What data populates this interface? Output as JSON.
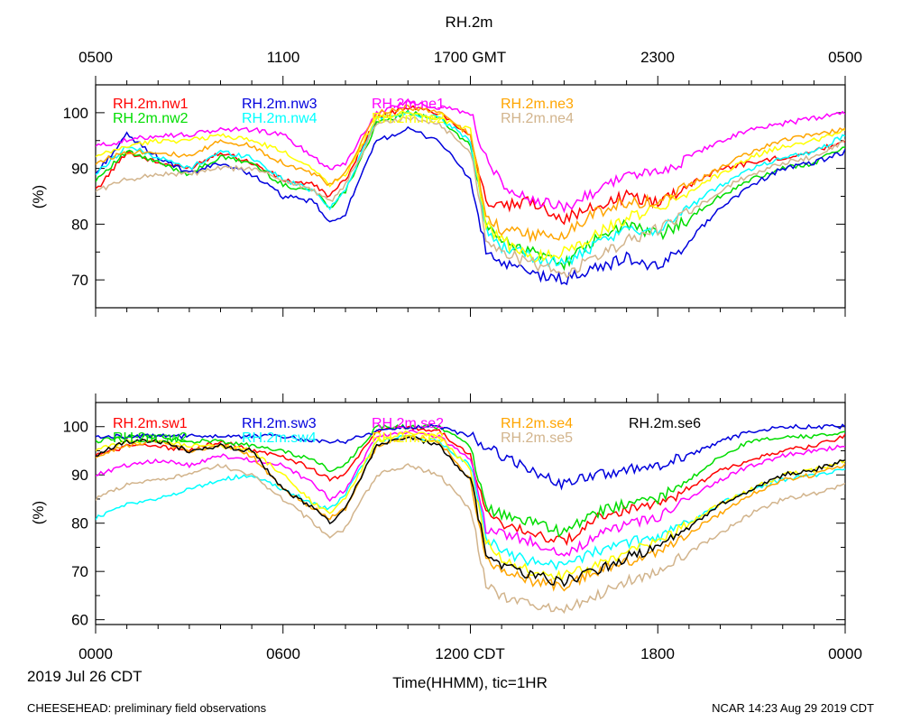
{
  "title": "RH.2m",
  "top_axis": {
    "ticks": [
      "0500",
      "1100",
      "1700 GMT",
      "2300",
      "0500"
    ]
  },
  "bottom_axis": {
    "ticks": [
      "0000",
      "0600",
      "1200 CDT",
      "1800",
      "0000"
    ],
    "xlabel": "Time(HHMM), tic=1HR"
  },
  "date_label": "2019 Jul 26 CDT",
  "footer_left": "CHEESEHEAD: preliminary field observations",
  "footer_right": "NCAR 14:23 Aug 29 2019 CDT",
  "chart_data": [
    {
      "type": "line",
      "title": "RH.2m",
      "ylabel": "(%)",
      "ylim": [
        65,
        105
      ],
      "yticks": [
        "70",
        "80",
        "90",
        "100"
      ],
      "xlim_hours": [
        0,
        24
      ],
      "x_hours": [
        0,
        1,
        2,
        3,
        4,
        5,
        6,
        7,
        7.5,
        8,
        9,
        10,
        11,
        12,
        12.5,
        13,
        14,
        15,
        16,
        17,
        18,
        19,
        20,
        21,
        22,
        23,
        24
      ],
      "series": [
        {
          "name": "RH.2m.nw1",
          "color": "#ff0000",
          "values": [
            86,
            93,
            91,
            90,
            93,
            91,
            88,
            87,
            85,
            88,
            99,
            101,
            100,
            96,
            84,
            83,
            84,
            81,
            83,
            85,
            84,
            87,
            90,
            91,
            92,
            93,
            95
          ]
        },
        {
          "name": "RH.2m.nw2",
          "color": "#00dd00",
          "values": [
            88,
            93,
            91,
            89,
            92,
            91,
            87,
            86,
            83,
            86,
            98,
            100,
            99,
            94,
            80,
            77,
            75,
            73,
            77,
            80,
            78,
            81,
            85,
            88,
            90,
            91,
            94
          ]
        },
        {
          "name": "RH.2m.nw3",
          "color": "#0000dd",
          "values": [
            89,
            96,
            92,
            89,
            91,
            89,
            85,
            84,
            80,
            82,
            95,
            97,
            95,
            88,
            75,
            73,
            71,
            70,
            72,
            74,
            72,
            77,
            83,
            87,
            90,
            91,
            93
          ]
        },
        {
          "name": "RH.2m.nw4",
          "color": "#00ffff",
          "values": [
            89,
            94,
            92,
            90,
            93,
            92,
            88,
            86,
            83,
            86,
            99,
            100,
            99,
            95,
            79,
            76,
            74,
            73,
            76,
            79,
            79,
            83,
            87,
            90,
            92,
            93,
            96
          ]
        },
        {
          "name": "RH.2m.ne1",
          "color": "#ff00ff",
          "values": [
            94,
            95,
            96,
            96,
            97,
            97,
            96,
            92,
            90,
            91,
            100,
            102,
            101,
            100,
            92,
            87,
            84,
            83,
            86,
            89,
            89,
            92,
            95,
            97,
            98,
            99,
            100
          ]
        },
        {
          "name": "RH.2m.ne2",
          "color": "#ffff00",
          "values": [
            92,
            94,
            95,
            95,
            96,
            95,
            93,
            90,
            87,
            89,
            99,
            100,
            99,
            97,
            80,
            77,
            74,
            75,
            78,
            81,
            83,
            86,
            89,
            92,
            94,
            95,
            97
          ]
        },
        {
          "name": "RH.2m.ne3",
          "color": "#ffa500",
          "values": [
            91,
            93,
            93,
            92,
            95,
            94,
            91,
            89,
            87,
            89,
            100,
            101,
            100,
            96,
            82,
            79,
            78,
            78,
            82,
            84,
            84,
            87,
            90,
            93,
            95,
            96,
            97
          ]
        },
        {
          "name": "RH.2m.ne4",
          "color": "#d2b48c",
          "values": [
            86,
            88,
            89,
            89,
            90,
            90,
            88,
            86,
            84,
            87,
            98,
            99,
            98,
            93,
            78,
            75,
            73,
            71,
            74,
            77,
            79,
            82,
            86,
            89,
            91,
            92,
            95
          ]
        }
      ]
    },
    {
      "type": "line",
      "title": "",
      "ylabel": "(%)",
      "ylim": [
        59,
        105
      ],
      "yticks": [
        "60",
        "70",
        "80",
        "90",
        "100"
      ],
      "xlim_hours": [
        0,
        24
      ],
      "x_hours": [
        0,
        1,
        2,
        3,
        4,
        5,
        6,
        7,
        7.5,
        8,
        9,
        10,
        11,
        12,
        12.5,
        13,
        14,
        15,
        16,
        17,
        18,
        19,
        20,
        21,
        22,
        23,
        24
      ],
      "series": [
        {
          "name": "RH.2m.sw1",
          "color": "#ff0000",
          "values": [
            94,
            96,
            96,
            95,
            97,
            95,
            94,
            91,
            89,
            90,
            99,
            100,
            99,
            94,
            82,
            80,
            78,
            76,
            81,
            83,
            84,
            87,
            91,
            93,
            95,
            96,
            98
          ]
        },
        {
          "name": "RH.2m.sw2",
          "color": "#00dd00",
          "values": [
            97,
            98,
            98,
            97,
            97,
            96,
            95,
            93,
            91,
            92,
            100,
            100,
            100,
            96,
            83,
            82,
            80,
            78,
            82,
            84,
            85,
            89,
            94,
            97,
            98,
            98,
            99
          ]
        },
        {
          "name": "RH.2m.sw3",
          "color": "#0000dd",
          "values": [
            98,
            98,
            98,
            98,
            98,
            98,
            98,
            97,
            97,
            97,
            99,
            100,
            100,
            98,
            96,
            94,
            91,
            88,
            90,
            91,
            92,
            94,
            97,
            99,
            100,
            100,
            100
          ]
        },
        {
          "name": "RH.2m.sw4",
          "color": "#00ffff",
          "values": [
            81,
            84,
            85,
            87,
            89,
            90,
            87,
            84,
            83,
            86,
            97,
            98,
            97,
            92,
            77,
            74,
            72,
            71,
            74,
            76,
            77,
            80,
            84,
            87,
            89,
            90,
            91
          ]
        },
        {
          "name": "RH.2m.se2",
          "color": "#ff00ff",
          "values": [
            90,
            92,
            93,
            92,
            94,
            93,
            92,
            88,
            85,
            87,
            98,
            99,
            98,
            93,
            79,
            78,
            76,
            73,
            77,
            80,
            81,
            85,
            89,
            92,
            94,
            95,
            96
          ]
        },
        {
          "name": "RH.2m.se3",
          "color": "#ffff00",
          "values": [
            95,
            97,
            97,
            96,
            96,
            95,
            90,
            84,
            82,
            85,
            97,
            99,
            98,
            91,
            76,
            73,
            70,
            69,
            71,
            74,
            76,
            80,
            84,
            87,
            90,
            91,
            93
          ]
        },
        {
          "name": "RH.2m.se4",
          "color": "#ffa500",
          "values": [
            94,
            96,
            97,
            95,
            96,
            94,
            87,
            83,
            81,
            83,
            96,
            98,
            97,
            89,
            72,
            70,
            68,
            67,
            70,
            72,
            74,
            78,
            82,
            86,
            89,
            90,
            92
          ]
        },
        {
          "name": "RH.2m.se5",
          "color": "#d2b48c",
          "values": [
            85,
            88,
            89,
            90,
            92,
            90,
            85,
            80,
            77,
            79,
            90,
            92,
            90,
            83,
            67,
            65,
            63,
            62,
            65,
            68,
            70,
            74,
            78,
            82,
            85,
            86,
            88
          ]
        },
        {
          "name": "RH.2m.se6",
          "color": "#000000",
          "values": [
            94,
            97,
            97,
            95,
            96,
            95,
            87,
            83,
            80,
            83,
            96,
            98,
            96,
            89,
            74,
            71,
            69,
            68,
            70,
            73,
            75,
            79,
            84,
            87,
            90,
            91,
            93
          ]
        }
      ]
    }
  ]
}
